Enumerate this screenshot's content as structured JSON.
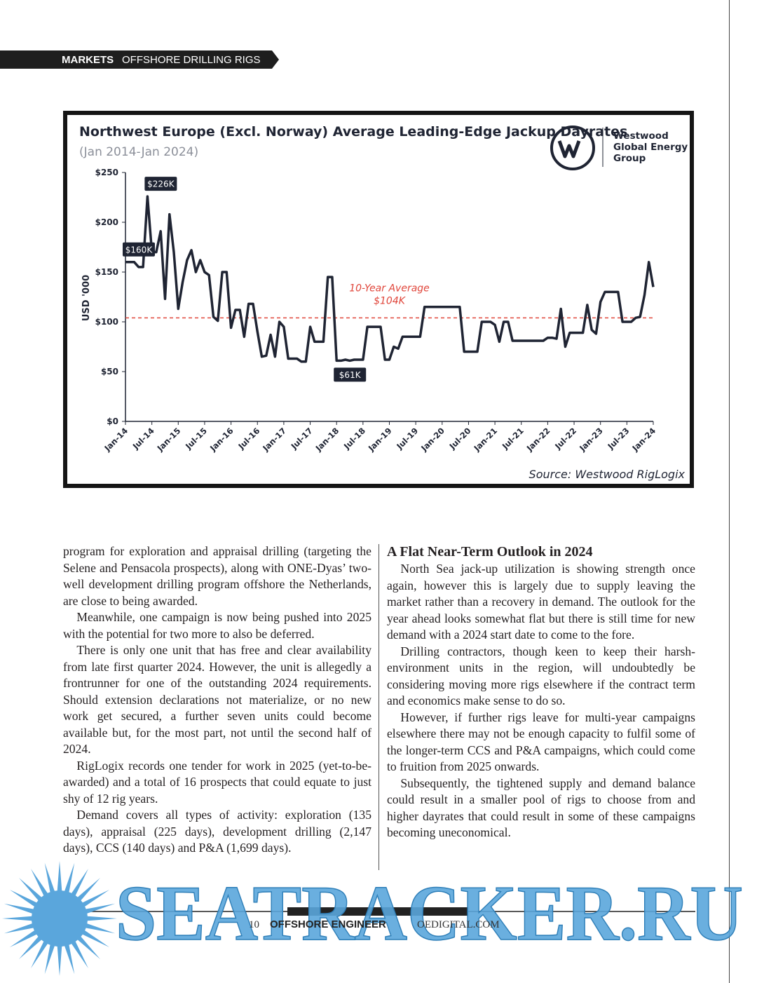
{
  "header": {
    "section": "MARKETS",
    "topic": "OFFSHORE DRILLING RIGS"
  },
  "chart_data": {
    "type": "line",
    "title": "Northwest Europe (Excl. Norway) Average Leading-Edge Jackup Dayrates",
    "subtitle": "(Jan 2014-Jan 2024)",
    "logo_text": [
      "Westwood",
      "Global Energy",
      "Group"
    ],
    "source": "Source: Westwood RigLogix",
    "y_label": "USD '000",
    "color": "#1f2433",
    "categories": [
      "Jan-14",
      null,
      null,
      null,
      null,
      null,
      "Jul-14",
      null,
      null,
      null,
      null,
      null,
      "Jan-15",
      null,
      null,
      null,
      null,
      null,
      "Jul-15",
      null,
      null,
      null,
      null,
      null,
      "Jan-16",
      null,
      null,
      null,
      null,
      null,
      "Jul-16",
      null,
      null,
      null,
      null,
      null,
      "Jan-17",
      null,
      null,
      null,
      null,
      null,
      "Jul-17",
      null,
      null,
      null,
      null,
      null,
      "Jan-18",
      null,
      null,
      null,
      null,
      null,
      "Jul-18",
      null,
      null,
      null,
      null,
      null,
      "Jan-19",
      null,
      null,
      null,
      null,
      null,
      "Jul-19",
      null,
      null,
      null,
      null,
      null,
      "Jan-20",
      null,
      null,
      null,
      null,
      null,
      "Jul-20",
      null,
      null,
      null,
      null,
      null,
      "Jan-21",
      null,
      null,
      null,
      null,
      null,
      "Jul-21",
      null,
      null,
      null,
      null,
      null,
      "Jan-22",
      null,
      null,
      null,
      null,
      null,
      "Jul-22",
      null,
      null,
      null,
      null,
      null,
      "Jan-23",
      null,
      null,
      null,
      null,
      null,
      "Jul-23",
      null,
      null,
      null,
      null,
      null,
      "Jan-24"
    ],
    "values": [
      160,
      160,
      160,
      155,
      155,
      226,
      170,
      170,
      191,
      123,
      208,
      170,
      113,
      140,
      162,
      172,
      150,
      162,
      150,
      147,
      105,
      101,
      150,
      150,
      94,
      112,
      112,
      85,
      118,
      118,
      90,
      65,
      66,
      87,
      65,
      100,
      95,
      63,
      63,
      63,
      60,
      60,
      95,
      80,
      80,
      80,
      145,
      145,
      61,
      61,
      62,
      61,
      62,
      62,
      62,
      95,
      95,
      95,
      95,
      62,
      62,
      75,
      73,
      85,
      85,
      85,
      85,
      85,
      115,
      115,
      115,
      115,
      115,
      115,
      115,
      115,
      115,
      70,
      70,
      70,
      70,
      100,
      100,
      100,
      97,
      80,
      100,
      100,
      81,
      81,
      81,
      81,
      81,
      81,
      81,
      81,
      84,
      84,
      83,
      113,
      75,
      89,
      89,
      89,
      89,
      117,
      92,
      88,
      120,
      130,
      130,
      130,
      130,
      100,
      100,
      100,
      104,
      105,
      127,
      160,
      135
    ],
    "ylim": [
      0,
      250
    ],
    "yticks": [
      {
        "value": 0,
        "label": "$0"
      },
      {
        "value": 50,
        "label": "$50"
      },
      {
        "value": 100,
        "label": "$100"
      },
      {
        "value": 150,
        "label": "$150"
      },
      {
        "value": 200,
        "label": "$200"
      },
      {
        "value": 250,
        "label": "$250"
      }
    ],
    "reference_line": {
      "value": 104,
      "color": "#e0453a",
      "label": [
        "10-Year Average",
        "$104K"
      ]
    },
    "annotations": [
      {
        "text": "$226K",
        "value": 226
      },
      {
        "text": "$160K",
        "value": 160
      },
      {
        "text": "$61K",
        "value": 61
      }
    ]
  },
  "article": {
    "left_paragraphs": [
      "program for exploration and appraisal drilling (targeting the Selene and Pensacola prospects), along with ONE-Dyas’ two-well development drilling program offshore the Netherlands, are close to being awarded.",
      "Meanwhile, one campaign is now being pushed into 2025 with the potential for two more to also be deferred.",
      "There is only one unit that has free and clear availability from late first quarter 2024. However, the unit is allegedly a frontrunner for one of the outstanding 2024 requirements. Should extension declarations not materialize, or no new work get secured, a further seven units could become available but, for the most part, not until the second half of 2024.",
      "RigLogix records one tender for work in 2025 (yet-to-be-awarded) and a total of 16 prospects that could equate to just shy of 12 rig years.",
      "Demand covers all types of activity: exploration (135 days), appraisal (225 days), development drilling (2,147 days), CCS (140 days) and P&A (1,699 days)."
    ],
    "heading": "A Flat Near-Term Outlook in 2024",
    "right_paragraphs": [
      "North Sea jack-up utilization is showing strength once again, however this is largely due to supply leaving the market rather than a recovery in demand. The outlook for the year ahead looks somewhat flat but there is still time for new demand with a 2024 start date to come to the fore.",
      "Drilling contractors, though keen to keep their harsh-environment units in the region, will undoubtedly be considering moving more rigs elsewhere if the contract term and economics make sense to do so.",
      "However, if further rigs leave for multi-year campaigns elsewhere there may not be enough capacity to fulfil some of the longer-term CCS and P&A campaigns, which could come to fruition from 2025 onwards.",
      "Subsequently, the tightened supply and demand balance could result in a smaller pool of rigs to choose from and higher dayrates that could result in some of these campaigns becoming uneconomical."
    ]
  },
  "footer": {
    "page": "10",
    "magazine": "OFFSHORE ENGINEER",
    "site": "OEDIGITAL.COM"
  },
  "watermark": "SEATRACKER.RU"
}
